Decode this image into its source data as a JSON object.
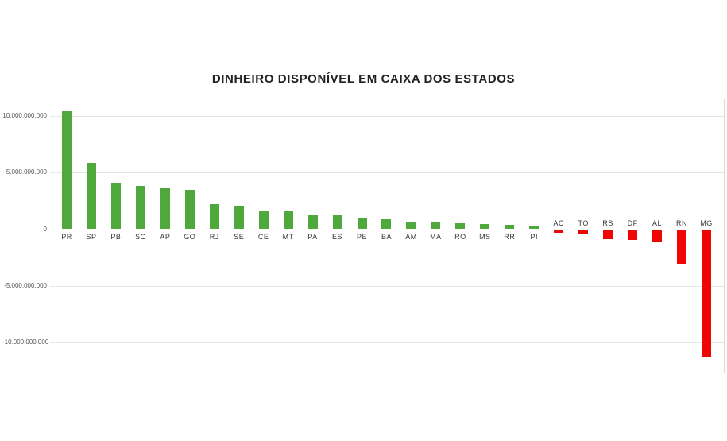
{
  "chart_data": {
    "type": "bar",
    "title": "DINHEIRO DISPONÍVEL EM CAIXA DOS ESTADOS",
    "xlabel": "",
    "ylabel": "",
    "legend": "none",
    "grid": "horizontal",
    "background_color": "#ffffff",
    "positive_color": "#4fa83c",
    "negative_color": "#f00505",
    "ylim": [
      -12800000000,
      11700000000
    ],
    "categories": [
      "PR",
      "SP",
      "PB",
      "SC",
      "AP",
      "GO",
      "RJ",
      "SE",
      "CE",
      "MT",
      "PA",
      "ES",
      "PE",
      "BA",
      "AM",
      "MA",
      "RO",
      "MS",
      "RR",
      "PI",
      "AC",
      "TO",
      "RS",
      "DF",
      "AL",
      "RN",
      "MG"
    ],
    "values": [
      10400000000,
      5850000000,
      4100000000,
      3850000000,
      3650000000,
      3500000000,
      2200000000,
      2100000000,
      1650000000,
      1600000000,
      1300000000,
      1200000000,
      1050000000,
      850000000,
      650000000,
      620000000,
      550000000,
      450000000,
      400000000,
      250000000,
      -280000000,
      -300000000,
      -800000000,
      -900000000,
      -1000000000,
      -3000000000,
      -11200000000
    ],
    "yticks": [
      {
        "value": 10000000000,
        "label": "10.000.000.000"
      },
      {
        "value": 5000000000,
        "label": "5.000.000.000"
      },
      {
        "value": 0,
        "label": "0"
      },
      {
        "value": -5000000000,
        "label": "-5.000.000.000"
      },
      {
        "value": -10000000000,
        "label": "-10.000.000.000"
      }
    ]
  }
}
